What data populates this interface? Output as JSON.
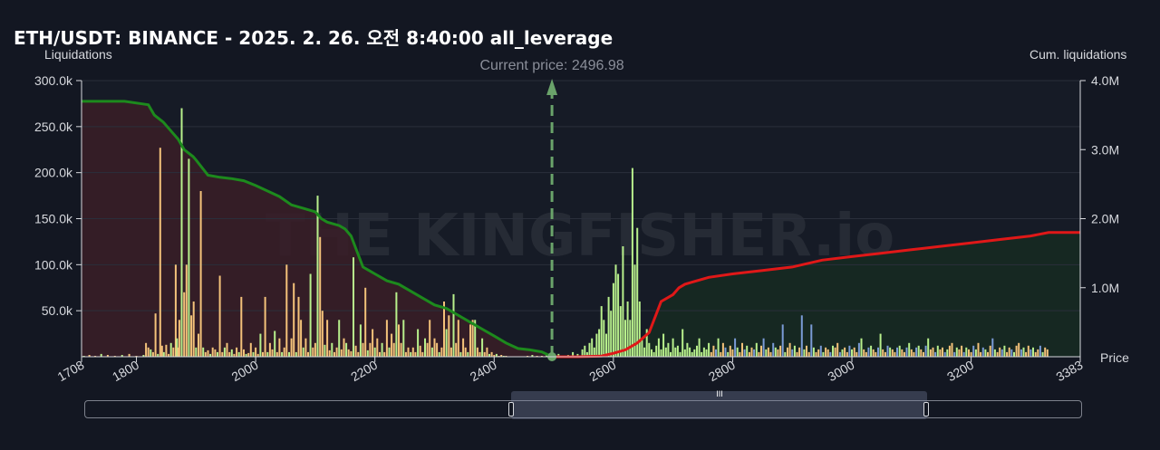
{
  "header": {
    "title": "ETH/USDT: BINANCE - 2025. 2. 26. 오전 8:40:00 all_leverage"
  },
  "colors": {
    "background": "#131722",
    "short_fill": "#3a1d27",
    "long_fill": "#162a22",
    "short_cum_line": "#1d8a1d",
    "long_cum_line": "#e01818",
    "bar_high_leverage": "#f4c27a",
    "bar_low_leverage": "#b8f08c",
    "bar_mid_leverage": "#7a9bd6",
    "current_price_line": "#6aa36a"
  },
  "scrollbar": {
    "grip": "III",
    "window_start_fraction": 0.428,
    "window_end_fraction": 0.845
  },
  "chart_data": {
    "type": "bar",
    "title": "ETH/USDT: BINANCE - 2025. 2. 26. 오전 8:40:00 all_leverage",
    "ylabel_left": "Liquidations",
    "ylabel_right": "Cum. liquidations",
    "xlabel": "Price",
    "xlim": [
      1708,
      3383
    ],
    "ylim_left": [
      0,
      300000
    ],
    "ylim_right": [
      0,
      4000000
    ],
    "x_ticks": [
      "1708",
      "1800",
      "2000",
      "2200",
      "2400",
      "2600",
      "2800",
      "3000",
      "3200",
      "3383"
    ],
    "y_ticks_left": [
      "50.0k",
      "100.0k",
      "150.0k",
      "200.0k",
      "250.0k",
      "300.0k"
    ],
    "y_ticks_right": [
      "1.0M",
      "2.0M",
      "3.0M",
      "4.0M"
    ],
    "y_tick_values_left": [
      50000,
      100000,
      150000,
      200000,
      250000,
      300000
    ],
    "y_tick_values_right": [
      1000000,
      2000000,
      3000000,
      4000000
    ],
    "grid": true,
    "current_price": {
      "label": "Current price: 2496.98",
      "value": 2496.98
    },
    "watermark": "THE KINGFISHER.io",
    "bars": {
      "price": [
        1712,
        1716,
        1721,
        1726,
        1731,
        1736,
        1741,
        1747,
        1752,
        1758,
        1764,
        1770,
        1776,
        1782,
        1788,
        1794,
        1800,
        1806,
        1812,
        1816,
        1820,
        1824,
        1828,
        1832,
        1836,
        1840,
        1843,
        1846,
        1850,
        1854,
        1858,
        1862,
        1866,
        1868,
        1870,
        1872,
        1876,
        1880,
        1884,
        1888,
        1892,
        1896,
        1900,
        1904,
        1908,
        1912,
        1916,
        1920,
        1924,
        1928,
        1932,
        1936,
        1940,
        1944,
        1948,
        1952,
        1956,
        1960,
        1964,
        1968,
        1972,
        1976,
        1980,
        1984,
        1988,
        1992,
        1996,
        2000,
        2004,
        2008,
        2012,
        2016,
        2020,
        2024,
        2028,
        2032,
        2036,
        2040,
        2044,
        2048,
        2052,
        2056,
        2060,
        2064,
        2068,
        2072,
        2076,
        2080,
        2084,
        2088,
        2092,
        2096,
        2100,
        2104,
        2108,
        2112,
        2116,
        2120,
        2124,
        2128,
        2132,
        2136,
        2140,
        2144,
        2148,
        2152,
        2156,
        2160,
        2164,
        2168,
        2172,
        2176,
        2180,
        2184,
        2188,
        2192,
        2196,
        2200,
        2204,
        2208,
        2212,
        2216,
        2220,
        2224,
        2228,
        2232,
        2236,
        2240,
        2244,
        2248,
        2252,
        2256,
        2260,
        2264,
        2268,
        2272,
        2276,
        2280,
        2284,
        2288,
        2292,
        2296,
        2300,
        2304,
        2308,
        2312,
        2316,
        2320,
        2324,
        2328,
        2332,
        2336,
        2340,
        2344,
        2348,
        2352,
        2356,
        2360,
        2364,
        2368,
        2372,
        2376,
        2380,
        2384,
        2388,
        2392,
        2396,
        2400,
        2404,
        2408,
        2412,
        2416,
        2420,
        2424,
        2428,
        2432,
        2436,
        2440,
        2444,
        2448,
        2452,
        2456,
        2460,
        2464,
        2468,
        2472,
        2476,
        2480,
        2484,
        2488,
        2492,
        2496,
        2500,
        2504,
        2508,
        2512,
        2516,
        2520,
        2524,
        2528,
        2532,
        2536,
        2540,
        2544,
        2548,
        2552,
        2556,
        2560,
        2564,
        2568,
        2572,
        2576,
        2580,
        2584,
        2588,
        2592,
        2596,
        2600,
        2604,
        2608,
        2612,
        2616,
        2620,
        2624,
        2628,
        2632,
        2636,
        2640,
        2644,
        2648,
        2652,
        2656,
        2660,
        2664,
        2668,
        2672,
        2676,
        2680,
        2684,
        2688,
        2692,
        2696,
        2700,
        2704,
        2708,
        2712,
        2716,
        2720,
        2724,
        2728,
        2732,
        2736,
        2740,
        2744,
        2748,
        2752,
        2756,
        2760,
        2764,
        2768,
        2772,
        2776,
        2780,
        2784,
        2788,
        2792,
        2796,
        2800,
        2804,
        2808,
        2812,
        2816,
        2820,
        2824,
        2828,
        2832,
        2836,
        2840,
        2844,
        2848,
        2852,
        2856,
        2860,
        2864,
        2868,
        2872,
        2876,
        2880,
        2884,
        2888,
        2892,
        2896,
        2900,
        2904,
        2908,
        2912,
        2916,
        2920,
        2924,
        2928,
        2932,
        2936,
        2940,
        2944,
        2948,
        2952,
        2956,
        2960,
        2964,
        2968,
        2972,
        2976,
        2980,
        2984,
        2988,
        2992,
        2996,
        3000,
        3004,
        3008,
        3012,
        3016,
        3020,
        3024,
        3028,
        3032,
        3036,
        3040,
        3044,
        3048,
        3052,
        3056,
        3060,
        3064,
        3068,
        3072,
        3076,
        3080,
        3084,
        3088,
        3092,
        3096,
        3100,
        3104,
        3108,
        3112,
        3116,
        3120,
        3124,
        3128,
        3132,
        3136,
        3140,
        3144,
        3148,
        3152,
        3156,
        3160,
        3164,
        3168,
        3172,
        3176,
        3180,
        3184,
        3188,
        3192,
        3196,
        3200,
        3204,
        3208,
        3212,
        3216,
        3220,
        3224,
        3228,
        3232,
        3236,
        3240,
        3244,
        3248,
        3252,
        3256,
        3260,
        3264,
        3268,
        3272,
        3276,
        3280,
        3284,
        3288,
        3292,
        3296,
        3300,
        3304,
        3308,
        3312,
        3316,
        3320,
        3324,
        3328,
        3332,
        3336,
        3340,
        3344,
        3348,
        3352,
        3356,
        3360,
        3364,
        3368,
        3372,
        3376,
        3380
      ],
      "value": [
        1000,
        0,
        2000,
        0,
        1000,
        0,
        3000,
        0,
        2000,
        0,
        1000,
        0,
        2000,
        0,
        3000,
        0,
        1000,
        0,
        2000,
        15000,
        10000,
        8000,
        5000,
        47000,
        3000,
        227000,
        12000,
        5000,
        13000,
        3000,
        15000,
        10000,
        100000,
        20000,
        10000,
        40000,
        270000,
        70000,
        100000,
        215000,
        45000,
        60000,
        10000,
        25000,
        180000,
        10000,
        5000,
        7000,
        3000,
        10000,
        8000,
        5000,
        88000,
        5000,
        10000,
        15000,
        5000,
        8000,
        3000,
        10000,
        5000,
        65000,
        8000,
        3000,
        4000,
        15000,
        5000,
        10000,
        3000,
        25000,
        5000,
        65000,
        5000,
        15000,
        8000,
        28000,
        5000,
        20000,
        5000,
        10000,
        100000,
        5000,
        20000,
        80000,
        5000,
        65000,
        40000,
        10000,
        20000,
        5000,
        90000,
        10000,
        15000,
        175000,
        130000,
        50000,
        13000,
        40000,
        7000,
        15000,
        5000,
        10000,
        40000,
        8000,
        20000,
        15000,
        8000,
        6000,
        108000,
        12000,
        5000,
        35000,
        15000,
        75000,
        7000,
        15000,
        30000,
        10000,
        20000,
        5000,
        15000,
        5000,
        40000,
        10000,
        25000,
        15000,
        70000,
        35000,
        15000,
        40000,
        5000,
        10000,
        5000,
        10000,
        5000,
        30000,
        12000,
        5000,
        20000,
        15000,
        40000,
        10000,
        20000,
        15000,
        5000,
        10000,
        60000,
        30000,
        45000,
        10000,
        68000,
        15000,
        40000,
        5000,
        20000,
        10000,
        5000,
        35000,
        40000,
        40000,
        10000,
        5000,
        20000,
        5000,
        10000,
        3000,
        5000,
        2000,
        3000,
        1000,
        2000,
        1000,
        1000,
        0,
        0,
        0,
        0,
        0,
        0,
        0,
        0,
        1000,
        0,
        2000,
        0,
        1000,
        0,
        1000,
        0,
        2000,
        0,
        1000,
        0,
        0,
        3000,
        0,
        1000,
        0,
        2000,
        0,
        5000,
        0,
        3000,
        0,
        8000,
        12000,
        5000,
        15000,
        20000,
        10000,
        25000,
        30000,
        55000,
        40000,
        25000,
        65000,
        50000,
        80000,
        100000,
        90000,
        55000,
        120000,
        40000,
        60000,
        40000,
        205000,
        100000,
        140000,
        60000,
        20000,
        10000,
        30000,
        15000,
        8000,
        5000,
        12000,
        20000,
        8000,
        25000,
        10000,
        15000,
        5000,
        20000,
        10000,
        12000,
        5000,
        30000,
        8000,
        15000,
        10000,
        5000,
        8000,
        12000,
        20000,
        5000,
        10000,
        8000,
        15000,
        5000,
        12000,
        8000,
        20000,
        5000,
        15000,
        10000,
        5000,
        12000,
        8000,
        20000,
        10000,
        5000,
        15000,
        8000,
        12000,
        5000,
        10000,
        8000,
        15000,
        5000,
        12000,
        20000,
        8000,
        10000,
        5000,
        15000,
        10000,
        8000,
        12000,
        35000,
        5000,
        10000,
        15000,
        8000,
        12000,
        5000,
        10000,
        45000,
        8000,
        12000,
        5000,
        35000,
        10000,
        5000,
        8000,
        12000,
        5000,
        10000,
        8000,
        5000,
        12000,
        10000,
        15000,
        5000,
        8000,
        10000,
        5000,
        12000,
        8000,
        10000,
        5000,
        15000,
        20000,
        8000,
        5000,
        10000,
        12000,
        8000,
        5000,
        10000,
        25000,
        8000,
        5000,
        12000,
        10000,
        8000,
        5000,
        10000,
        12000,
        8000,
        5000,
        10000,
        15000,
        8000,
        5000,
        10000,
        12000,
        8000,
        5000,
        12000,
        20000,
        8000,
        10000,
        5000,
        12000,
        8000,
        10000,
        5000,
        8000,
        12000,
        15000,
        5000,
        10000,
        8000,
        12000,
        5000,
        10000,
        8000,
        5000,
        12000,
        8000,
        15000,
        5000,
        10000,
        8000,
        5000,
        12000,
        20000,
        8000,
        5000,
        10000,
        8000,
        12000,
        5000,
        10000,
        8000,
        5000,
        12000,
        15000,
        8000,
        10000,
        5000,
        12000,
        8000,
        10000,
        5000,
        8000,
        12000,
        5000,
        10000,
        8000
      ],
      "leverage_group": []
    },
    "cumulative_short": {
      "price": [
        1708,
        1780,
        1820,
        1830,
        1845,
        1860,
        1870,
        1880,
        1895,
        1900,
        1920,
        1940,
        1960,
        1980,
        2000,
        2020,
        2040,
        2060,
        2080,
        2100,
        2110,
        2120,
        2140,
        2150,
        2160,
        2180,
        2190,
        2200,
        2220,
        2240,
        2260,
        2280,
        2300,
        2320,
        2340,
        2360,
        2380,
        2400,
        2420,
        2440,
        2460,
        2480,
        2496.98
      ],
      "value": [
        3700000,
        3700000,
        3650000,
        3500000,
        3400000,
        3250000,
        3150000,
        3000000,
        2900000,
        2850000,
        2630000,
        2600000,
        2580000,
        2550000,
        2480000,
        2400000,
        2320000,
        2200000,
        2150000,
        2100000,
        2000000,
        1950000,
        1900000,
        1850000,
        1750000,
        1300000,
        1250000,
        1200000,
        1100000,
        1050000,
        950000,
        850000,
        750000,
        700000,
        600000,
        500000,
        400000,
        300000,
        200000,
        120000,
        100000,
        70000,
        0
      ]
    },
    "cumulative_long": {
      "price": [
        2496.98,
        2540,
        2580,
        2600,
        2620,
        2640,
        2660,
        2680,
        2700,
        2710,
        2720,
        2740,
        2760,
        2800,
        2850,
        2900,
        2950,
        3000,
        3050,
        3100,
        3150,
        3200,
        3250,
        3300,
        3330,
        3383
      ],
      "value": [
        0,
        0,
        10000,
        50000,
        100000,
        200000,
        350000,
        800000,
        900000,
        1000000,
        1050000,
        1100000,
        1150000,
        1200000,
        1250000,
        1300000,
        1400000,
        1450000,
        1500000,
        1550000,
        1600000,
        1650000,
        1700000,
        1750000,
        1800000,
        1800000
      ]
    }
  }
}
